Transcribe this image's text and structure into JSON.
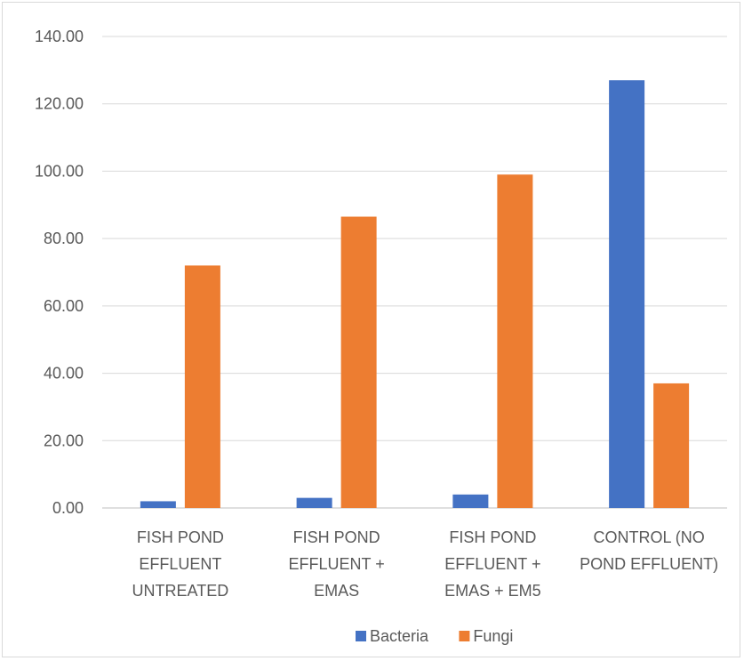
{
  "chart_data": {
    "type": "bar",
    "categories": [
      [
        "FISH POND",
        "EFFLUENT",
        "UNTREATED"
      ],
      [
        "FISH POND",
        "EFFLUENT +",
        "EMAS"
      ],
      [
        "FISH POND",
        "EFFLUENT +",
        "EMAS + EM5"
      ],
      [
        "CONTROL (NO",
        "POND EFFLUENT)"
      ]
    ],
    "series": [
      {
        "name": "Bacteria",
        "color": "#4472C4",
        "values": [
          2,
          3,
          4,
          127
        ]
      },
      {
        "name": "Fungi",
        "color": "#ED7D31",
        "values": [
          72,
          86.5,
          99,
          37
        ]
      }
    ],
    "ylim": [
      0,
      140
    ],
    "yticks": [
      "0.00",
      "20.00",
      "40.00",
      "60.00",
      "80.00",
      "100.00",
      "120.00",
      "140.00"
    ],
    "grid": true,
    "legend": "bottom"
  }
}
